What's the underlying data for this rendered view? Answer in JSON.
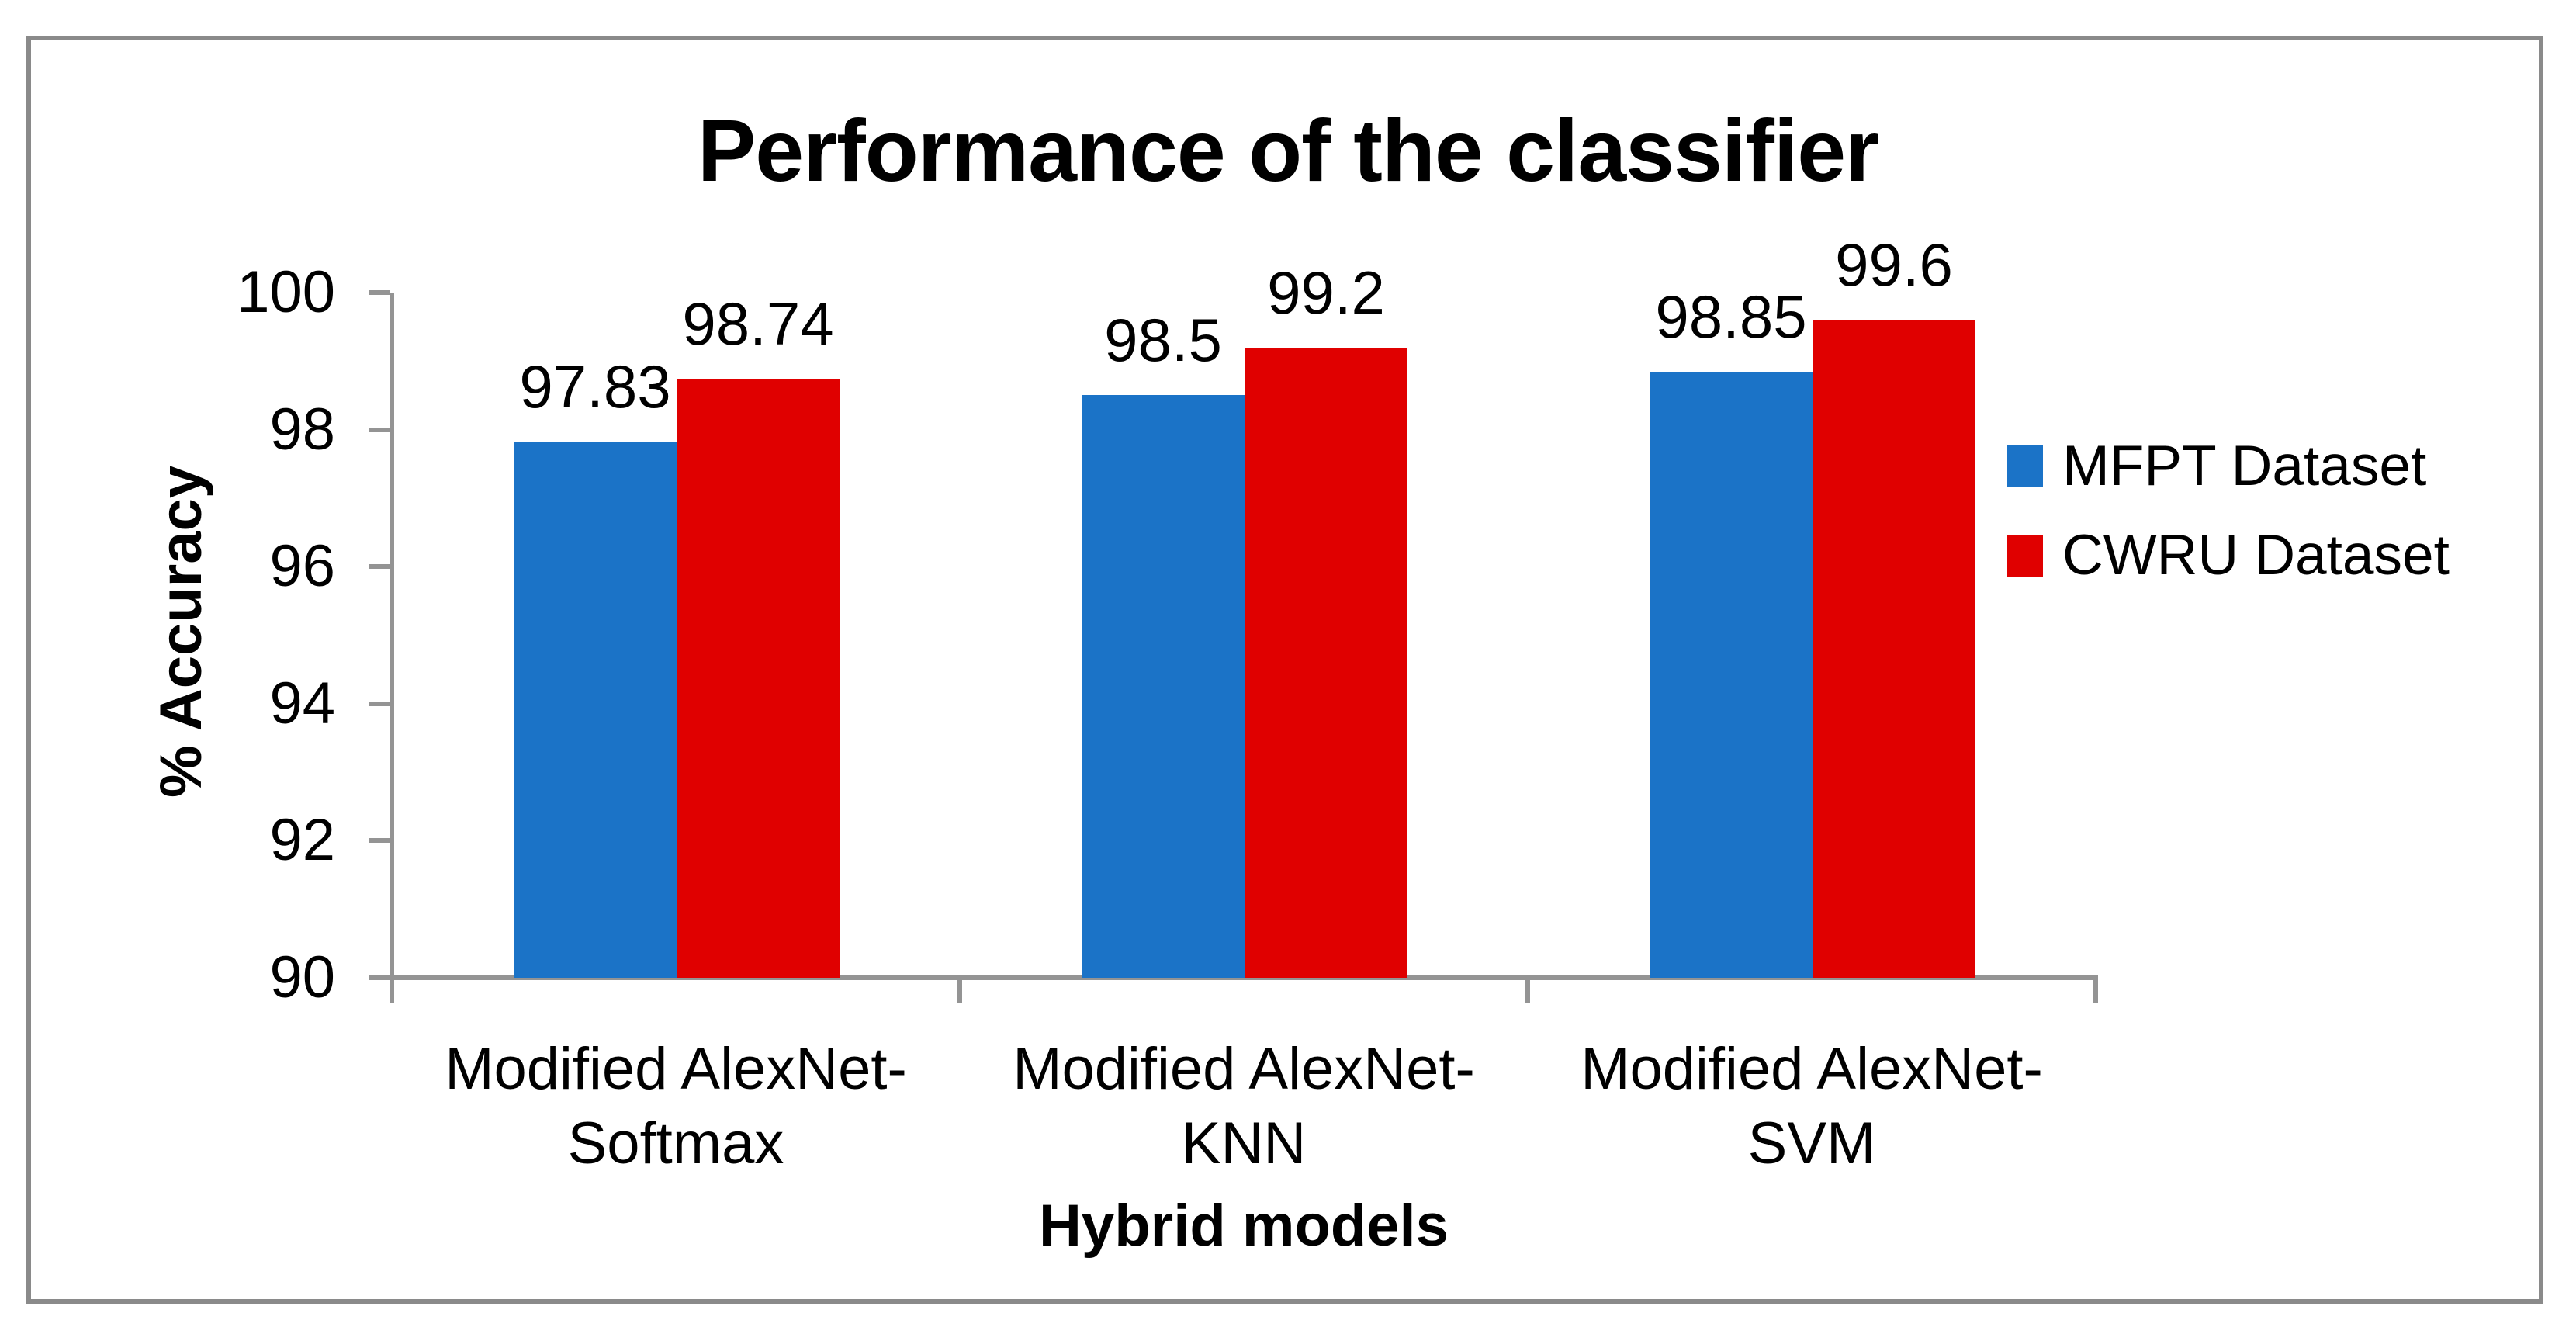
{
  "colors": {
    "border": "#8A8A8A",
    "axis": "#949494",
    "mfpt_blue": "#1B73C7",
    "cwru_red": "#E00000",
    "text": "#000000"
  },
  "chart_data": {
    "type": "bar",
    "title": "Performance of the classifier",
    "xlabel": "Hybrid models",
    "ylabel": "% Accuracy",
    "ylim": [
      90,
      100
    ],
    "yticks": [
      90,
      92,
      94,
      96,
      98,
      100
    ],
    "grid": false,
    "legend_position": "right",
    "categories": [
      "Modified AlexNet-Softmax",
      "Modified AlexNet-KNN",
      "Modified AlexNet-SVM"
    ],
    "category_label_lines": [
      [
        "Modified AlexNet-",
        "Softmax"
      ],
      [
        "Modified AlexNet-",
        "KNN"
      ],
      [
        "Modified AlexNet-",
        "SVM"
      ]
    ],
    "series": [
      {
        "name": "MFPT Dataset",
        "color": "#1B73C7",
        "values": [
          97.83,
          98.5,
          98.85
        ],
        "value_labels": [
          "97.83",
          "98.5",
          "98.85"
        ]
      },
      {
        "name": "CWRU Dataset",
        "color": "#E00000",
        "values": [
          98.74,
          99.2,
          99.6
        ],
        "value_labels": [
          "98.74",
          "99.2",
          "99.6"
        ]
      }
    ]
  }
}
